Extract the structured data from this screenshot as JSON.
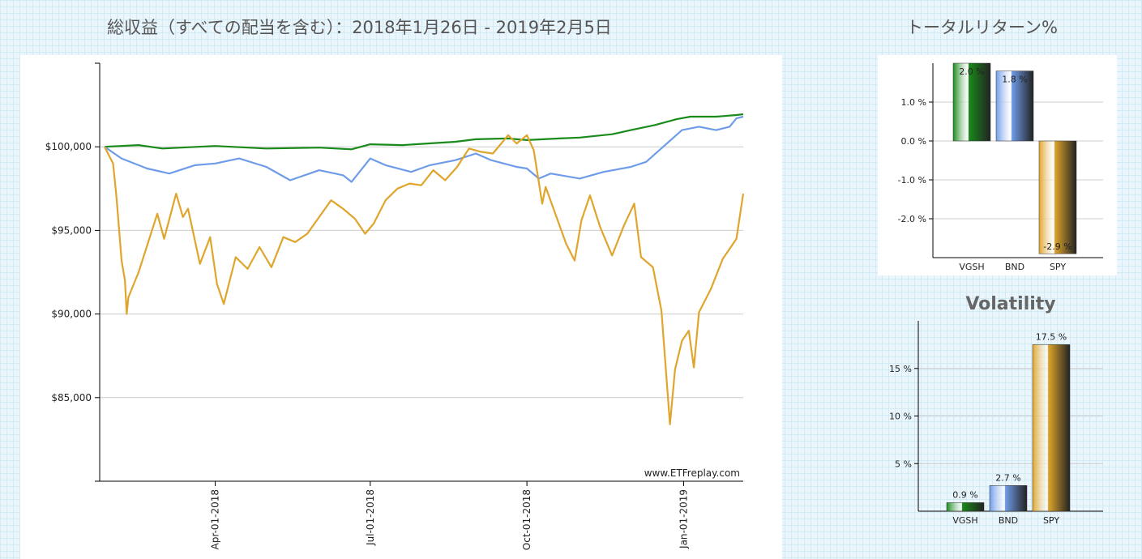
{
  "header": {
    "main_title": "総収益（すべての配当を含む）：2018年1月26日 - 2019年2月5日",
    "total_return_title": "トータルリターン%"
  },
  "colors": {
    "VGSH": "#1a8a1a",
    "BND": "#6f9ce8",
    "SPY": "#dfa52c",
    "grid": "#cccccc"
  },
  "chart_data": [
    {
      "type": "line",
      "title": "総収益（すべての配当を含む）：2018年1月26日 - 2019年2月5日",
      "watermark": "www.ETFreplay.com",
      "x_tick_labels": [
        "Apr-01-2018",
        "Jul-01-2018",
        "Oct-01-2018",
        "Jan-01-2019"
      ],
      "x_tick_dates": [
        "2018-04-01",
        "2018-07-01",
        "2018-10-01",
        "2019-01-01"
      ],
      "x_range": [
        "2018-01-26",
        "2019-02-05"
      ],
      "y_tick_labels": [
        "$85,000",
        "$90,000",
        "$95,000",
        "$100,000"
      ],
      "y_ticks": [
        85000,
        90000,
        95000,
        100000
      ],
      "ylim": [
        80000,
        105000
      ],
      "grid": true,
      "series": [
        {
          "name": "VGSH",
          "color": "#1a8a1a",
          "points": [
            [
              "2018-01-26",
              100000
            ],
            [
              "2018-02-15",
              100100
            ],
            [
              "2018-03-01",
              99900
            ],
            [
              "2018-04-01",
              100050
            ],
            [
              "2018-05-01",
              99900
            ],
            [
              "2018-06-01",
              99950
            ],
            [
              "2018-06-20",
              99850
            ],
            [
              "2018-07-01",
              100150
            ],
            [
              "2018-07-20",
              100100
            ],
            [
              "2018-08-20",
              100300
            ],
            [
              "2018-09-01",
              100450
            ],
            [
              "2018-09-20",
              100500
            ],
            [
              "2018-10-01",
              100400
            ],
            [
              "2018-10-20",
              100500
            ],
            [
              "2018-11-01",
              100550
            ],
            [
              "2018-11-20",
              100750
            ],
            [
              "2018-12-01",
              101000
            ],
            [
              "2018-12-15",
              101300
            ],
            [
              "2018-12-28",
              101650
            ],
            [
              "2019-01-05",
              101800
            ],
            [
              "2019-01-20",
              101800
            ],
            [
              "2019-02-01",
              101900
            ],
            [
              "2019-02-05",
              101950
            ]
          ]
        },
        {
          "name": "BND",
          "color": "#6f9ce8",
          "points": [
            [
              "2018-01-26",
              100000
            ],
            [
              "2018-02-05",
              99300
            ],
            [
              "2018-02-20",
              98700
            ],
            [
              "2018-03-05",
              98400
            ],
            [
              "2018-03-20",
              98900
            ],
            [
              "2018-04-01",
              99000
            ],
            [
              "2018-04-15",
              99300
            ],
            [
              "2018-05-01",
              98800
            ],
            [
              "2018-05-15",
              98000
            ],
            [
              "2018-06-01",
              98600
            ],
            [
              "2018-06-15",
              98300
            ],
            [
              "2018-06-20",
              97900
            ],
            [
              "2018-07-01",
              99300
            ],
            [
              "2018-07-10",
              98900
            ],
            [
              "2018-07-25",
              98500
            ],
            [
              "2018-08-05",
              98900
            ],
            [
              "2018-08-20",
              99200
            ],
            [
              "2018-09-01",
              99600
            ],
            [
              "2018-09-10",
              99200
            ],
            [
              "2018-09-25",
              98800
            ],
            [
              "2018-10-01",
              98700
            ],
            [
              "2018-10-08",
              98100
            ],
            [
              "2018-10-15",
              98400
            ],
            [
              "2018-11-01",
              98100
            ],
            [
              "2018-11-15",
              98500
            ],
            [
              "2018-12-01",
              98800
            ],
            [
              "2018-12-10",
              99100
            ],
            [
              "2018-12-20",
              100000
            ],
            [
              "2018-12-31",
              101000
            ],
            [
              "2019-01-10",
              101200
            ],
            [
              "2019-01-20",
              101000
            ],
            [
              "2019-01-28",
              101200
            ],
            [
              "2019-02-01",
              101700
            ],
            [
              "2019-02-05",
              101800
            ]
          ]
        },
        {
          "name": "SPY",
          "color": "#dfa52c",
          "points": [
            [
              "2018-01-26",
              100000
            ],
            [
              "2018-01-31",
              99000
            ],
            [
              "2018-02-02",
              97000
            ],
            [
              "2018-02-05",
              93200
            ],
            [
              "2018-02-07",
              92000
            ],
            [
              "2018-02-08",
              90000
            ],
            [
              "2018-02-09",
              91000
            ],
            [
              "2018-02-15",
              92500
            ],
            [
              "2018-02-26",
              96000
            ],
            [
              "2018-03-02",
              94500
            ],
            [
              "2018-03-09",
              97200
            ],
            [
              "2018-03-13",
              95800
            ],
            [
              "2018-03-16",
              96300
            ],
            [
              "2018-03-23",
              93000
            ],
            [
              "2018-03-29",
              94600
            ],
            [
              "2018-04-02",
              91800
            ],
            [
              "2018-04-06",
              90600
            ],
            [
              "2018-04-13",
              93400
            ],
            [
              "2018-04-20",
              92700
            ],
            [
              "2018-04-27",
              94000
            ],
            [
              "2018-05-04",
              92800
            ],
            [
              "2018-05-11",
              94600
            ],
            [
              "2018-05-18",
              94300
            ],
            [
              "2018-05-25",
              94800
            ],
            [
              "2018-06-01",
              95800
            ],
            [
              "2018-06-08",
              96800
            ],
            [
              "2018-06-15",
              96300
            ],
            [
              "2018-06-22",
              95700
            ],
            [
              "2018-06-28",
              94800
            ],
            [
              "2018-07-03",
              95400
            ],
            [
              "2018-07-10",
              96800
            ],
            [
              "2018-07-17",
              97500
            ],
            [
              "2018-07-24",
              97800
            ],
            [
              "2018-07-31",
              97700
            ],
            [
              "2018-08-07",
              98600
            ],
            [
              "2018-08-14",
              98000
            ],
            [
              "2018-08-21",
              98800
            ],
            [
              "2018-08-28",
              99900
            ],
            [
              "2018-09-04",
              99700
            ],
            [
              "2018-09-11",
              99600
            ],
            [
              "2018-09-20",
              100700
            ],
            [
              "2018-09-25",
              100200
            ],
            [
              "2018-10-01",
              100700
            ],
            [
              "2018-10-05",
              99800
            ],
            [
              "2018-10-10",
              96600
            ],
            [
              "2018-10-12",
              97600
            ],
            [
              "2018-10-24",
              94200
            ],
            [
              "2018-10-29",
              93200
            ],
            [
              "2018-11-02",
              95600
            ],
            [
              "2018-11-07",
              97100
            ],
            [
              "2018-11-13",
              95200
            ],
            [
              "2018-11-20",
              93500
            ],
            [
              "2018-11-27",
              95300
            ],
            [
              "2018-12-03",
              96600
            ],
            [
              "2018-12-07",
              93400
            ],
            [
              "2018-12-14",
              92800
            ],
            [
              "2018-12-19",
              90200
            ],
            [
              "2018-12-24",
              83400
            ],
            [
              "2018-12-27",
              86700
            ],
            [
              "2018-12-31",
              88400
            ],
            [
              "2019-01-04",
              89000
            ],
            [
              "2019-01-07",
              86800
            ],
            [
              "2019-01-10",
              90100
            ],
            [
              "2019-01-17",
              91500
            ],
            [
              "2019-01-24",
              93300
            ],
            [
              "2019-02-01",
              94500
            ],
            [
              "2019-02-05",
              97200
            ]
          ]
        }
      ]
    },
    {
      "type": "bar",
      "title": "トータルリターン%",
      "categories": [
        "VGSH",
        "BND",
        "SPY"
      ],
      "values": [
        2.0,
        1.8,
        -2.9
      ],
      "value_labels": [
        "2.0 %",
        "1.8 %",
        "-2.9 %"
      ],
      "y_tick_labels": [
        "-2.0 %",
        "-1.0 %",
        "0.0 %",
        "1.0 %"
      ],
      "y_ticks": [
        -2.0,
        -1.0,
        0.0,
        1.0
      ],
      "ylim": [
        -3.0,
        2.0
      ],
      "grid": true
    },
    {
      "type": "bar",
      "title": "Volatility",
      "categories": [
        "VGSH",
        "BND",
        "SPY"
      ],
      "values": [
        0.9,
        2.7,
        17.5
      ],
      "value_labels": [
        "0.9 %",
        "2.7 %",
        "17.5 %"
      ],
      "y_tick_labels": [
        "5 %",
        "10 %",
        "15 %"
      ],
      "y_ticks": [
        5,
        10,
        15
      ],
      "ylim": [
        0,
        20
      ],
      "grid": true
    }
  ]
}
